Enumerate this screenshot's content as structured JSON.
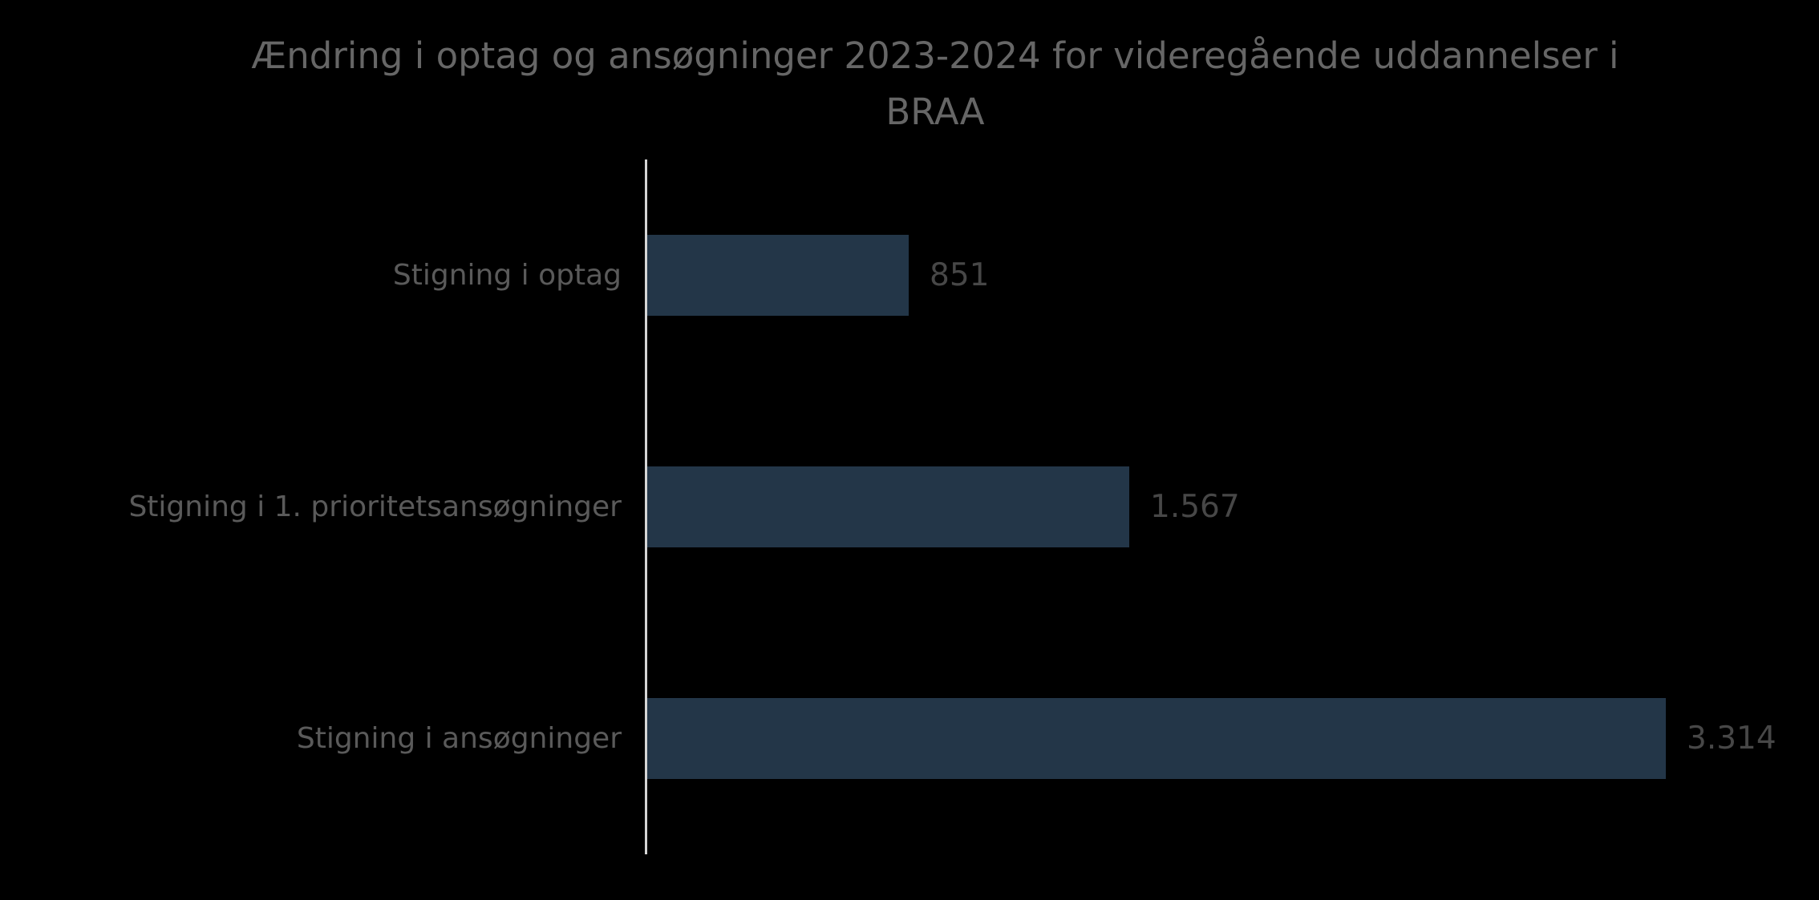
{
  "chart_data": {
    "type": "bar",
    "orientation": "horizontal",
    "title": "Ændring i optag og ansøgninger 2023-2024 for videregående uddannelser i BRAA",
    "title_lines": [
      "Ændring i optag og ansøgninger 2023-2024 for videregående uddannelser i",
      "BRAA"
    ],
    "categories": [
      "Stigning i optag",
      "Stigning i 1. prioritetsansøgninger",
      "Stigning i ansøgninger"
    ],
    "values": [
      851,
      1567,
      3314
    ],
    "value_labels": [
      "851",
      "1.567",
      "3.314"
    ],
    "xlabel": "",
    "ylabel": "",
    "xlim": [
      0,
      3820
    ],
    "grid": false,
    "legend_position": "none",
    "colors": {
      "background": "#000000",
      "bar": "#233648",
      "axis_line": "#d5d5d5",
      "title_text": "#666666",
      "category_text": "#5a5a5a",
      "value_text": "#474747"
    }
  }
}
